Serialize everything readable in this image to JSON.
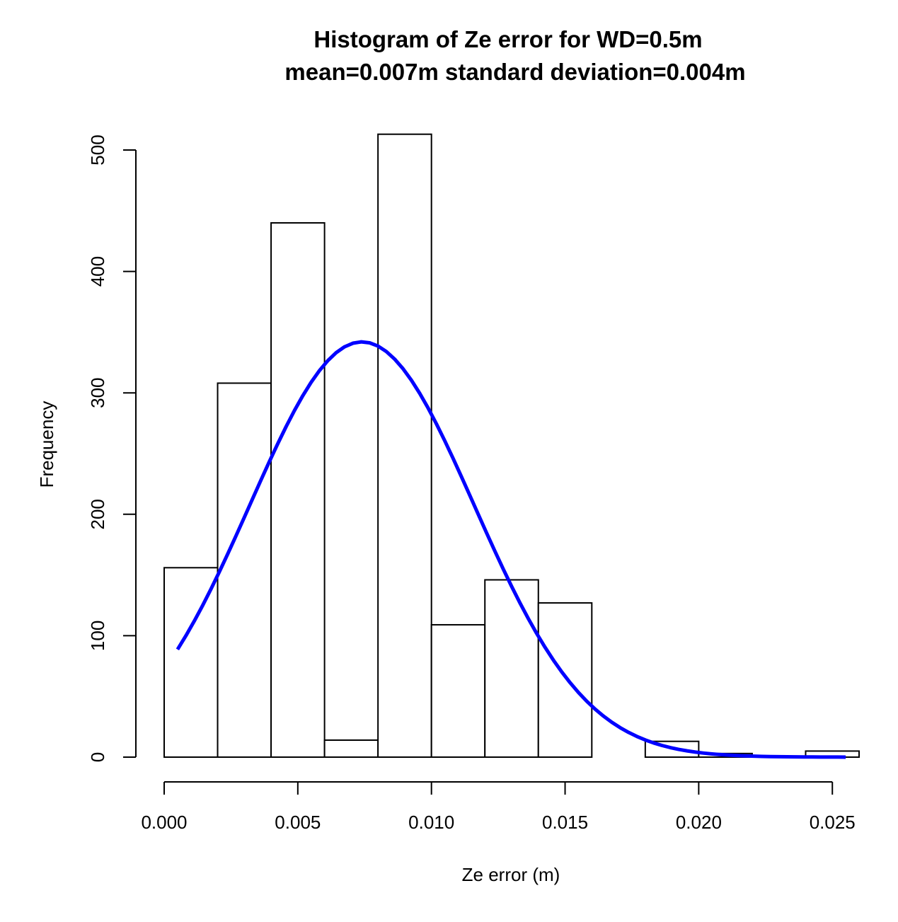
{
  "chart_data": {
    "type": "bar",
    "title": "Histogram of Ze error for WD=0.5m",
    "subtitle": "mean=0.007m  standard deviation=0.004m",
    "xlabel": "Ze error (m)",
    "ylabel": "Frequency",
    "bin_edges": [
      0.0,
      0.002,
      0.004,
      0.006,
      0.008,
      0.01,
      0.012,
      0.014,
      0.016,
      0.018,
      0.02,
      0.022,
      0.024,
      0.026
    ],
    "values": [
      156,
      308,
      440,
      14,
      513,
      109,
      146,
      127,
      0,
      13,
      3,
      0,
      5
    ],
    "xlim": [
      0.0,
      0.026
    ],
    "ylim": [
      0,
      513
    ],
    "x_ticks": [
      0.0,
      0.005,
      0.01,
      0.015,
      0.02,
      0.025
    ],
    "x_tick_labels": [
      "0.000",
      "0.005",
      "0.010",
      "0.015",
      "0.020",
      "0.025"
    ],
    "y_ticks": [
      0,
      100,
      200,
      300,
      400,
      500
    ],
    "y_tick_labels": [
      "0",
      "100",
      "200",
      "300",
      "400",
      "500"
    ],
    "curve": {
      "type": "line",
      "color": "#0000ff",
      "mean": 0.0074,
      "sd": 0.0042,
      "peak": 342,
      "x_range": [
        0.0005,
        0.0255
      ]
    },
    "grid": false,
    "bar_fill": "#ffffff",
    "bar_stroke": "#000000"
  }
}
